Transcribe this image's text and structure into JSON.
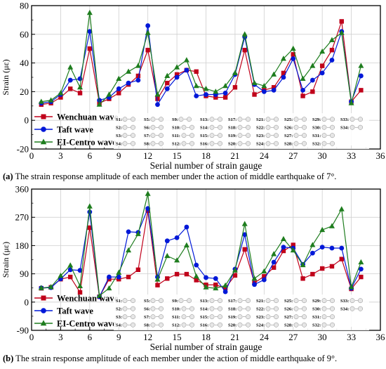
{
  "panels": [
    {
      "caption_tag": "(a)",
      "caption_text": " The strain response amplitude of each member under the action of middle earthquake of 7°.",
      "chart_data": {
        "type": "line",
        "xlabel": "Serial number of strain gauge",
        "ylabel": "Strain (με)",
        "xlim": [
          0,
          36
        ],
        "ylim": [
          -20,
          80
        ],
        "xticks": [
          0,
          3,
          6,
          9,
          12,
          15,
          18,
          21,
          24,
          27,
          30,
          33,
          36
        ],
        "yticks": [
          -20,
          0,
          20,
          40,
          60,
          80
        ],
        "grid": true,
        "legend_position": "bottom-left",
        "x": [
          1,
          2,
          3,
          4,
          5,
          6,
          7,
          8,
          9,
          10,
          11,
          12,
          13,
          14,
          15,
          16,
          17,
          18,
          19,
          20,
          21,
          22,
          23,
          24,
          25,
          26,
          27,
          28,
          29,
          30,
          31,
          32,
          33,
          34
        ],
        "series": [
          {
            "name": "Wenchuan wave",
            "color": "#c0001a",
            "marker": "square",
            "values": [
              11,
              12,
              16,
              22,
              19,
              50,
              12,
              15,
              19,
              25,
              31,
              49,
              15,
              26,
              32,
              35,
              34,
              17,
              16,
              16,
              23,
              49,
              18,
              21,
              23,
              33,
              46,
              17,
              20,
              38,
              49,
              69,
              13,
              21
            ]
          },
          {
            "name": "Taft wave",
            "color": "#0018d8",
            "marker": "circle",
            "values": [
              12,
              13,
              18,
              28,
              29,
              62,
              14,
              16,
              22,
              26,
              28,
              66,
              11,
              22,
              30,
              35,
              17,
              18,
              18,
              19,
              32,
              58,
              25,
              20,
              21,
              30,
              43,
              21,
              28,
              33,
              42,
              62,
              13,
              31
            ]
          },
          {
            "name": "EI-Centro wave",
            "color": "#1e7d1e",
            "marker": "triangle",
            "values": [
              13,
              14,
              19,
              37,
              23,
              75,
              11,
              18,
              29,
              34,
              38,
              61,
              18,
              31,
              37,
              42,
              24,
              22,
              20,
              24,
              33,
              60,
              26,
              24,
              32,
              43,
              50,
              29,
              38,
              48,
              56,
              61,
              12,
              38
            ]
          }
        ]
      }
    },
    {
      "caption_tag": "(b)",
      "caption_text": " The strain response amplitude of each member under the action of middle earthquake of 9°.",
      "chart_data": {
        "type": "line",
        "xlabel": "Serial number of strain gauge",
        "ylabel": "Strain (με)",
        "xlim": [
          0,
          36
        ],
        "ylim": [
          -90,
          360
        ],
        "xticks": [
          0,
          3,
          6,
          9,
          12,
          15,
          18,
          21,
          24,
          27,
          30,
          33,
          36
        ],
        "yticks": [
          -90,
          0,
          90,
          180,
          270,
          360
        ],
        "grid": true,
        "legend_position": "bottom-left",
        "x": [
          1,
          2,
          3,
          4,
          5,
          6,
          7,
          8,
          9,
          10,
          11,
          12,
          13,
          14,
          15,
          16,
          17,
          18,
          19,
          20,
          21,
          22,
          23,
          24,
          25,
          26,
          27,
          28,
          29,
          30,
          31,
          32,
          33,
          34
        ],
        "series": [
          {
            "name": "Wenchuan wave",
            "color": "#c0001a",
            "marker": "square",
            "values": [
              44,
              47,
              73,
              80,
              31,
              237,
              17,
              73,
              73,
              80,
              103,
              291,
              54,
              75,
              89,
              89,
              70,
              55,
              55,
              45,
              85,
              168,
              61,
              82,
              110,
              163,
              182,
              75,
              89,
              107,
              114,
              137,
              42,
              80
            ]
          },
          {
            "name": "Taft wave",
            "color": "#0018d8",
            "marker": "circle",
            "values": [
              45,
              46,
              74,
              103,
              101,
              287,
              17,
              80,
              80,
              224,
              222,
              298,
              80,
              195,
              205,
              239,
              118,
              78,
              75,
              33,
              105,
              215,
              56,
              71,
              127,
              175,
              172,
              120,
              156,
              175,
              172,
              172,
              44,
              105
            ]
          },
          {
            "name": "EI-Centro wave",
            "color": "#1e7d1e",
            "marker": "triangle",
            "values": [
              45,
              48,
              84,
              117,
              51,
              305,
              20,
              44,
              94,
              165,
              217,
              345,
              72,
              147,
              133,
              181,
              82,
              47,
              44,
              53,
              101,
              249,
              75,
              98,
              153,
              201,
              165,
              118,
              182,
              230,
              242,
              296,
              48,
              127
            ]
          }
        ]
      }
    }
  ],
  "gauge_table_a": {
    "labels": [
      "S1:",
      "S2:",
      "S3:",
      "S4:",
      "S5:",
      "S6:",
      "S7:",
      "S8:",
      "S9:",
      "S10:",
      "S11:",
      "S12:",
      "S13:",
      "S14:",
      "S15:",
      "S16:",
      "S17:",
      "S18:",
      "S19:",
      "S20:",
      "S21:",
      "S22:",
      "S23:",
      "S24:",
      "S25:",
      "S26:",
      "S27:",
      "S28:",
      "S29:",
      "S30:",
      "S31:",
      "S32:",
      "S33:",
      "S34:"
    ],
    "rows_per_col": [
      4,
      4,
      4,
      4,
      4,
      4,
      4,
      4,
      2
    ]
  },
  "gauge_table_b": {
    "labels": [
      "S1:",
      "S2:",
      "S3:",
      "S4:",
      "S5:",
      "S6:",
      "S7:",
      "S8:",
      "S9:",
      "S10:",
      "S11:",
      "S12:",
      "S13:",
      "S14:",
      "S15:",
      "S16:",
      "S17:",
      "S18:",
      "S19:",
      "S20:",
      "S21:",
      "S22:",
      "S23:",
      "S24:",
      "S25:",
      "S26:",
      "S27:",
      "S28:",
      "S29:",
      "S30:",
      "S31:",
      "S32:",
      "S33:",
      "S34:"
    ],
    "rows_per_col": [
      4,
      4,
      4,
      4,
      4,
      4,
      4,
      4,
      2
    ]
  }
}
